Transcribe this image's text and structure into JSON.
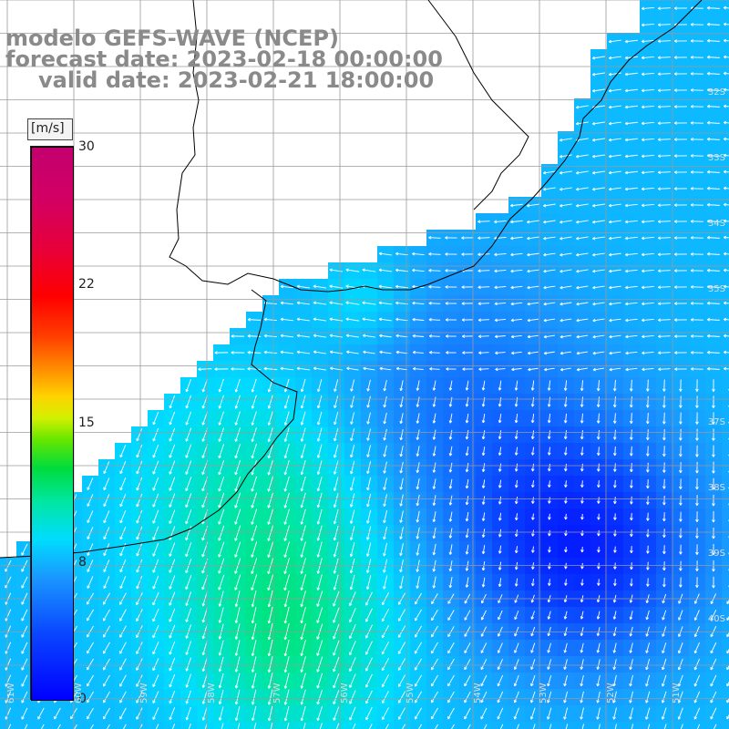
{
  "title": {
    "model": "modelo GEFS-WAVE (NCEP)",
    "forecast_date": "forecast date: 2023-02-18 00:00:00",
    "valid_date": "valid date: 2023-02-21 18:00:00"
  },
  "colorbar": {
    "unit": "[m/s]",
    "ticks": [
      "30",
      "22",
      "15",
      "8",
      "0"
    ],
    "min": 0,
    "max": 30
  },
  "lat_labels": [
    "32S",
    "33S",
    "34S",
    "35S",
    "37S",
    "38S",
    "39S",
    "40S"
  ],
  "lon_labels": [
    "61W",
    "60W",
    "59W",
    "58W",
    "57W",
    "56W",
    "55W",
    "54W",
    "53W",
    "52W",
    "51W"
  ],
  "colors": {
    "land": "#ffffff",
    "grid": "#9a9a9a",
    "coast": "#000000",
    "arrow": "#ffffff",
    "title": "#8a8a8a"
  }
}
